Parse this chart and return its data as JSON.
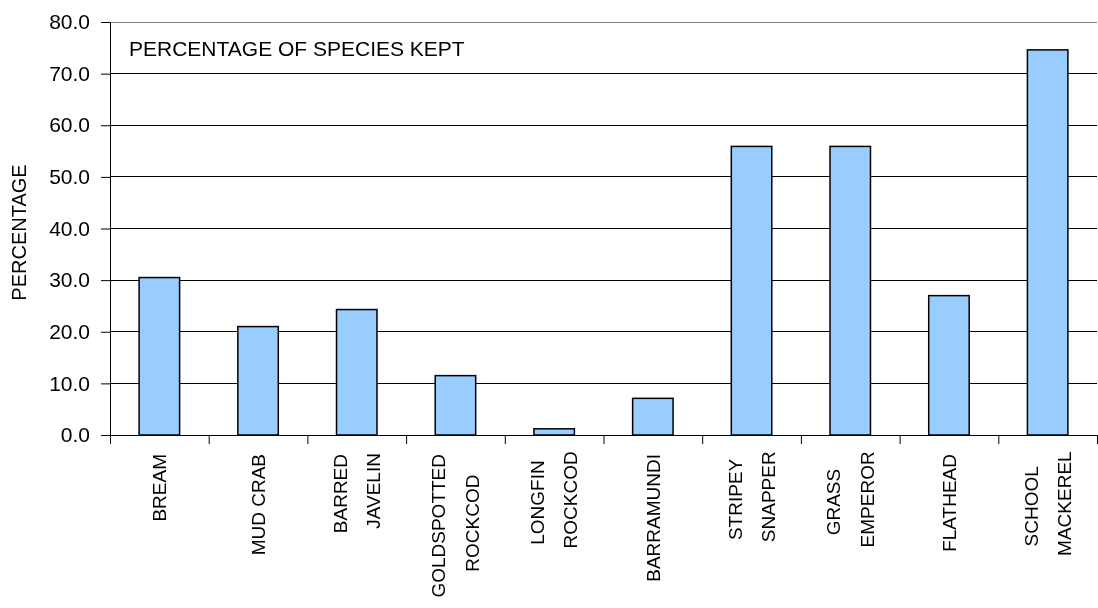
{
  "chart_data": {
    "type": "bar",
    "title": "PERCENTAGE OF SPECIES KEPT",
    "ylabel": "PERCENTAGE",
    "categories": [
      "BREAM",
      "MUD CRAB",
      "BARRED JAVELIN",
      "GOLDSPOTTED ROCKCOD",
      "LONGFIN ROCKCOD",
      "BARRAMUNDI",
      "STRIPEY SNAPPER",
      "GRASS EMPEROR",
      "FLATHEAD",
      "SCHOOL MACKEREL"
    ],
    "values": [
      30.5,
      21.0,
      24.3,
      11.5,
      1.2,
      7.1,
      55.9,
      55.9,
      27.0,
      74.6
    ],
    "color": "#99ccff",
    "ylim": [
      0,
      80
    ],
    "yticks": [
      {
        "value": 0,
        "label": "0.0"
      },
      {
        "value": 10,
        "label": "10.0"
      },
      {
        "value": 20,
        "label": "20.0"
      },
      {
        "value": 30,
        "label": "30.0"
      },
      {
        "value": 40,
        "label": "40.0"
      },
      {
        "value": 50,
        "label": "50.0"
      },
      {
        "value": 60,
        "label": "60.0"
      },
      {
        "value": 70,
        "label": "70.0"
      },
      {
        "value": 80,
        "label": "80.0"
      }
    ],
    "grid": "y"
  }
}
